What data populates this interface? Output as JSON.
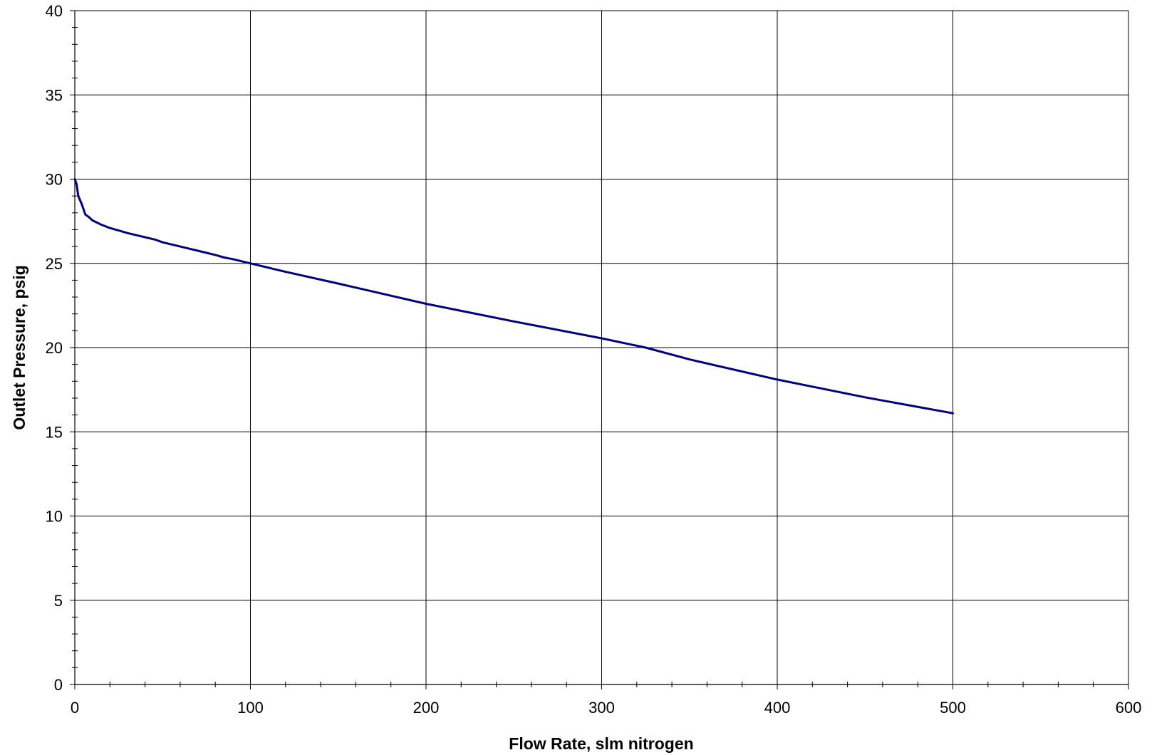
{
  "chart_data": {
    "type": "line",
    "title": "",
    "xlabel": "Flow Rate, slm nitrogen",
    "ylabel": "Outlet Pressure, psig",
    "xlim": [
      0,
      600
    ],
    "ylim": [
      0,
      40
    ],
    "x_ticks": [
      0,
      100,
      200,
      300,
      400,
      500,
      600
    ],
    "y_ticks": [
      0,
      5,
      10,
      15,
      20,
      25,
      30,
      35,
      40
    ],
    "x_tick_labels": [
      "0",
      "100",
      "200",
      "300",
      "400",
      "500",
      "600"
    ],
    "y_tick_labels": [
      "0",
      "5",
      "10",
      "15",
      "20",
      "25",
      "30",
      "35",
      "40"
    ],
    "grid": true,
    "legend": "none",
    "line_color": "#000080",
    "series": [
      {
        "x": [
          0,
          1,
          2,
          4,
          6,
          8,
          10,
          15,
          20,
          30,
          40,
          46,
          50,
          60,
          70,
          80,
          85,
          90,
          100,
          120,
          150,
          175,
          200,
          250,
          300,
          325,
          350,
          400,
          450,
          500
        ],
        "y": [
          30.0,
          29.7,
          29.0,
          28.5,
          27.9,
          27.75,
          27.55,
          27.3,
          27.1,
          26.8,
          26.55,
          26.4,
          26.25,
          26.0,
          25.75,
          25.5,
          25.35,
          25.25,
          25.0,
          24.5,
          23.8,
          23.2,
          22.6,
          21.55,
          20.55,
          20.0,
          19.3,
          18.1,
          17.05,
          16.1
        ]
      }
    ]
  }
}
